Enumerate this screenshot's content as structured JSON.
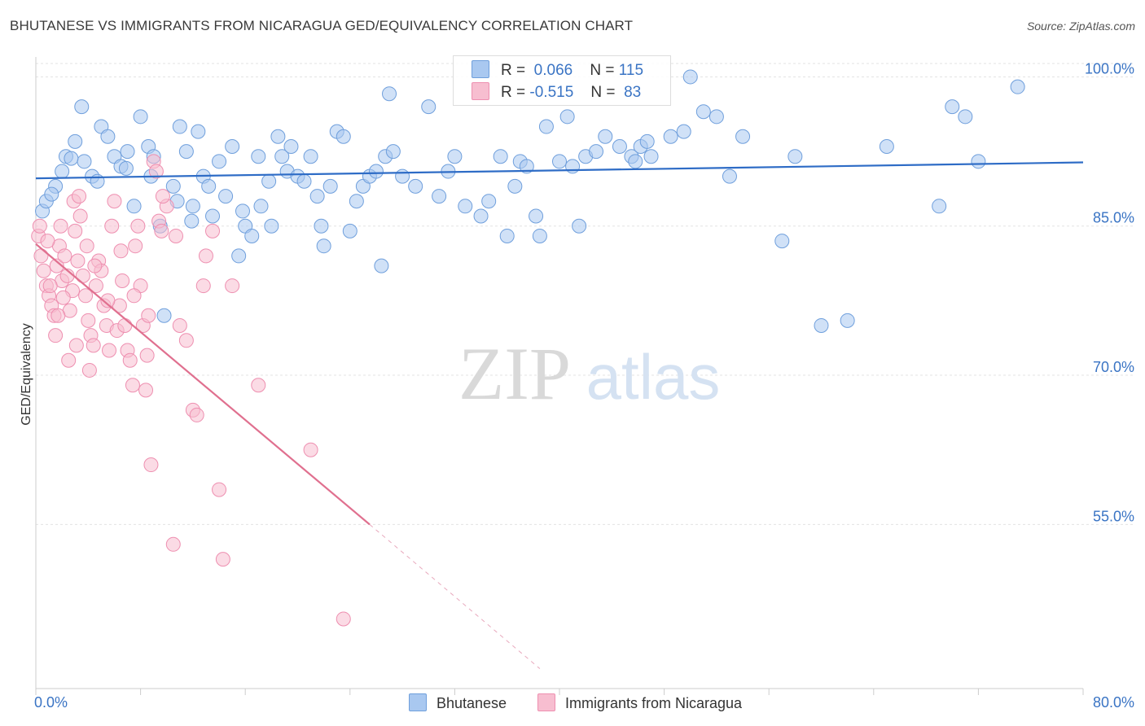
{
  "title": "BHUTANESE VS IMMIGRANTS FROM NICARAGUA GED/EQUIVALENCY CORRELATION CHART",
  "source": "Source: ZipAtlas.com",
  "watermark": {
    "zip": "ZIP",
    "atlas": "atlas"
  },
  "legend": {
    "r_label": "R =",
    "n_label": "N =",
    "rows": [
      {
        "r": "0.066",
        "n": "115"
      },
      {
        "r": "-0.515",
        "n": "83"
      }
    ]
  },
  "chart_data": {
    "type": "scatter",
    "title": "BHUTANESE VS IMMIGRANTS FROM NICARAGUA GED/EQUIVALENCY CORRELATION CHART",
    "xlabel": "",
    "ylabel": "GED/Equivalency",
    "xlim": [
      0,
      80
    ],
    "ylim": [
      38.5,
      102
    ],
    "x_tick_labels": [
      "0.0%",
      "80.0%"
    ],
    "y_ticks": [
      55,
      70,
      85,
      100
    ],
    "y_tick_labels": [
      "55.0%",
      "70.0%",
      "85.0%",
      "100.0%"
    ],
    "grid": true,
    "legend_position": "top-center",
    "colors": {
      "blue_fill": "#a9c8f0",
      "blue_stroke": "#6f9fdc",
      "blue_line": "#2e6cc6",
      "pink_fill": "#f7bed0",
      "pink_stroke": "#ee8fb0",
      "pink_line": "#e0708f",
      "axis_label": "#3a74c4"
    },
    "series": [
      {
        "name": "Bhutanese",
        "color": "#a9c8f0",
        "trend": {
          "x": [
            0,
            80
          ],
          "y": [
            89.8,
            91.4
          ]
        },
        "points": [
          [
            0.5,
            86.5
          ],
          [
            0.8,
            87.5
          ],
          [
            1.5,
            89
          ],
          [
            2,
            90.5
          ],
          [
            2.3,
            92
          ],
          [
            3,
            93.5
          ],
          [
            3.7,
            91.5
          ],
          [
            4.3,
            90
          ],
          [
            5,
            95
          ],
          [
            5.5,
            94
          ],
          [
            6,
            92
          ],
          [
            6.5,
            91
          ],
          [
            7,
            92.5
          ],
          [
            7.5,
            87
          ],
          [
            8,
            96
          ],
          [
            8.6,
            93
          ],
          [
            9,
            92
          ],
          [
            9.5,
            85
          ],
          [
            9.8,
            76
          ],
          [
            10.5,
            89
          ],
          [
            10.8,
            87.5
          ],
          [
            11,
            95
          ],
          [
            11.5,
            92.5
          ],
          [
            12,
            87
          ],
          [
            12.4,
            94.5
          ],
          [
            12.8,
            90
          ],
          [
            13.2,
            89
          ],
          [
            13.5,
            86
          ],
          [
            14,
            91.5
          ],
          [
            14.5,
            88
          ],
          [
            15,
            93
          ],
          [
            15.5,
            82
          ],
          [
            15.8,
            86.5
          ],
          [
            16,
            85
          ],
          [
            16.5,
            84
          ],
          [
            17,
            92
          ],
          [
            17.2,
            87
          ],
          [
            17.8,
            89.5
          ],
          [
            18,
            85
          ],
          [
            18.5,
            94
          ],
          [
            18.8,
            92
          ],
          [
            19.2,
            90.5
          ],
          [
            19.5,
            93
          ],
          [
            20,
            90
          ],
          [
            20.5,
            89.5
          ],
          [
            21,
            92
          ],
          [
            21.5,
            88
          ],
          [
            21.8,
            85
          ],
          [
            22,
            83
          ],
          [
            22.5,
            89
          ],
          [
            23,
            94.5
          ],
          [
            23.5,
            94
          ],
          [
            24,
            84.5
          ],
          [
            24.5,
            87.5
          ],
          [
            25,
            89
          ],
          [
            25.5,
            90
          ],
          [
            26,
            90.5
          ],
          [
            26.4,
            81
          ],
          [
            26.7,
            92
          ],
          [
            27.3,
            92.5
          ],
          [
            28,
            90
          ],
          [
            30,
            97
          ],
          [
            30.8,
            88
          ],
          [
            31.5,
            90.5
          ],
          [
            32,
            92
          ],
          [
            32.8,
            87
          ],
          [
            34,
            86
          ],
          [
            34.6,
            87.5
          ],
          [
            35.5,
            92
          ],
          [
            36,
            84
          ],
          [
            37,
            91.5
          ],
          [
            37.5,
            91
          ],
          [
            38.2,
            86
          ],
          [
            38.5,
            84
          ],
          [
            39,
            95
          ],
          [
            40,
            91.5
          ],
          [
            41,
            91
          ],
          [
            41.5,
            85
          ],
          [
            42,
            92
          ],
          [
            42.8,
            92.5
          ],
          [
            43.5,
            94
          ],
          [
            44.6,
            93
          ],
          [
            45.5,
            92
          ],
          [
            45.8,
            91.5
          ],
          [
            46.2,
            93
          ],
          [
            46.7,
            93.5
          ],
          [
            47,
            92
          ],
          [
            48.5,
            94
          ],
          [
            49.5,
            94.5
          ],
          [
            50,
            100
          ],
          [
            51,
            96.5
          ],
          [
            52,
            96
          ],
          [
            53,
            90
          ],
          [
            54,
            94
          ],
          [
            57,
            83.5
          ],
          [
            58,
            92
          ],
          [
            60,
            75
          ],
          [
            62,
            75.5
          ],
          [
            65,
            93
          ],
          [
            69,
            87
          ],
          [
            70,
            97
          ],
          [
            71,
            96
          ],
          [
            72,
            91.5
          ],
          [
            75,
            99
          ],
          [
            3.5,
            97
          ],
          [
            2.7,
            91.8
          ],
          [
            1.2,
            88.2
          ],
          [
            4.7,
            89.5
          ],
          [
            6.9,
            90.8
          ],
          [
            8.8,
            90
          ],
          [
            29,
            89
          ],
          [
            36.6,
            89
          ],
          [
            40.6,
            96
          ],
          [
            11.9,
            85.5
          ],
          [
            27,
            98.3
          ]
        ]
      },
      {
        "name": "Immigrants from Nicaragua",
        "color": "#f7bed0",
        "trend": {
          "x": [
            0,
            25.5
          ],
          "y": [
            83.2,
            55.0
          ]
        },
        "trend_dashed": {
          "x": [
            25.5,
            38.5
          ],
          "y": [
            55.0,
            40.5
          ]
        },
        "points": [
          [
            0.2,
            84
          ],
          [
            0.4,
            82
          ],
          [
            0.6,
            80.5
          ],
          [
            0.8,
            79
          ],
          [
            1,
            78
          ],
          [
            1.2,
            77
          ],
          [
            1.4,
            76
          ],
          [
            1.6,
            81
          ],
          [
            1.8,
            83
          ],
          [
            2,
            79.5
          ],
          [
            2.2,
            82
          ],
          [
            2.4,
            80
          ],
          [
            2.6,
            76.5
          ],
          [
            2.8,
            78.5
          ],
          [
            3,
            84.5
          ],
          [
            3.2,
            81.5
          ],
          [
            3.4,
            86
          ],
          [
            3.6,
            80
          ],
          [
            3.8,
            78
          ],
          [
            4,
            75.5
          ],
          [
            4.2,
            74
          ],
          [
            4.4,
            73
          ],
          [
            4.6,
            79
          ],
          [
            4.8,
            81.5
          ],
          [
            5,
            80.5
          ],
          [
            5.2,
            77
          ],
          [
            5.4,
            75
          ],
          [
            5.6,
            72.5
          ],
          [
            5.8,
            85
          ],
          [
            6,
            87.5
          ],
          [
            6.2,
            74.5
          ],
          [
            6.4,
            77
          ],
          [
            6.6,
            79.5
          ],
          [
            6.8,
            75
          ],
          [
            7,
            72.5
          ],
          [
            7.2,
            71.5
          ],
          [
            7.4,
            69
          ],
          [
            7.6,
            83
          ],
          [
            7.8,
            85
          ],
          [
            8,
            79
          ],
          [
            8.2,
            75
          ],
          [
            8.4,
            68.5
          ],
          [
            8.6,
            76
          ],
          [
            8.8,
            61
          ],
          [
            9,
            91.5
          ],
          [
            9.2,
            90.5
          ],
          [
            9.4,
            85.5
          ],
          [
            9.6,
            84.5
          ],
          [
            10,
            87
          ],
          [
            10.5,
            53
          ],
          [
            11,
            75
          ],
          [
            11.5,
            73.5
          ],
          [
            12,
            66.5
          ],
          [
            12.3,
            66
          ],
          [
            12.8,
            79
          ],
          [
            13,
            82
          ],
          [
            13.5,
            84.5
          ],
          [
            14,
            58.5
          ],
          [
            14.3,
            51.5
          ],
          [
            15,
            79
          ],
          [
            17,
            69
          ],
          [
            21,
            62.5
          ],
          [
            23.5,
            45.5
          ],
          [
            1.5,
            74
          ],
          [
            2.5,
            71.5
          ],
          [
            3.1,
            73
          ],
          [
            4.1,
            70.5
          ],
          [
            0.9,
            83.5
          ],
          [
            1.9,
            85
          ],
          [
            2.9,
            87.5
          ],
          [
            3.3,
            88
          ],
          [
            3.9,
            83
          ],
          [
            4.5,
            81
          ],
          [
            5.5,
            77.5
          ],
          [
            6.5,
            82.5
          ],
          [
            7.5,
            78
          ],
          [
            8.5,
            72
          ],
          [
            9.7,
            88
          ],
          [
            10.7,
            84
          ],
          [
            1.1,
            79
          ],
          [
            1.7,
            76
          ],
          [
            0.3,
            85
          ],
          [
            2.1,
            77.8
          ]
        ]
      }
    ]
  }
}
